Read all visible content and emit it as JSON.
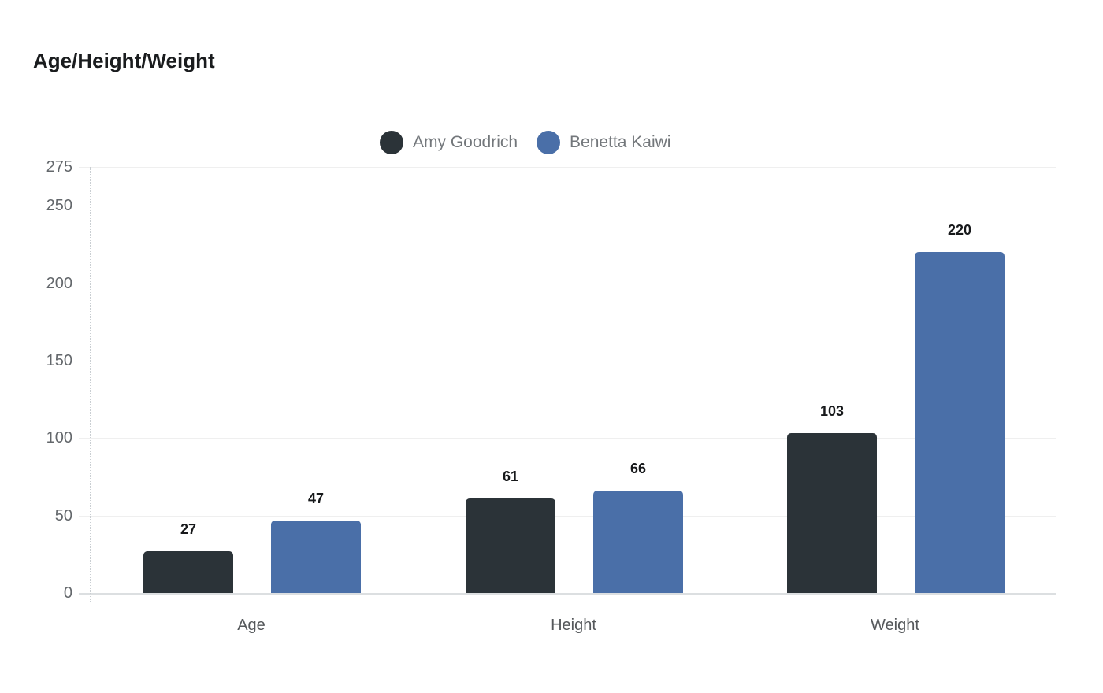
{
  "title": "Age/Height/Weight",
  "colors": {
    "background": "#ffffff",
    "series1": "#2b3338",
    "series2": "#4a6fa8",
    "gridline": "#efefef",
    "axis_text": "#63676b"
  },
  "chart_data": {
    "type": "bar",
    "title": "Age/Height/Weight",
    "categories": [
      "Age",
      "Height",
      "Weight"
    ],
    "series": [
      {
        "name": "Amy Goodrich",
        "color": "#2b3338",
        "values": [
          27,
          61,
          103
        ]
      },
      {
        "name": "Benetta Kaiwi",
        "color": "#4a6fa8",
        "values": [
          47,
          66,
          220
        ]
      }
    ],
    "xlabel": "",
    "ylabel": "",
    "yticks": [
      0,
      50,
      100,
      150,
      200,
      250,
      275
    ],
    "ylim": [
      0,
      275
    ],
    "grid": true,
    "legend_position": "top",
    "value_labels": [
      27,
      47,
      61,
      66,
      103,
      220
    ]
  }
}
